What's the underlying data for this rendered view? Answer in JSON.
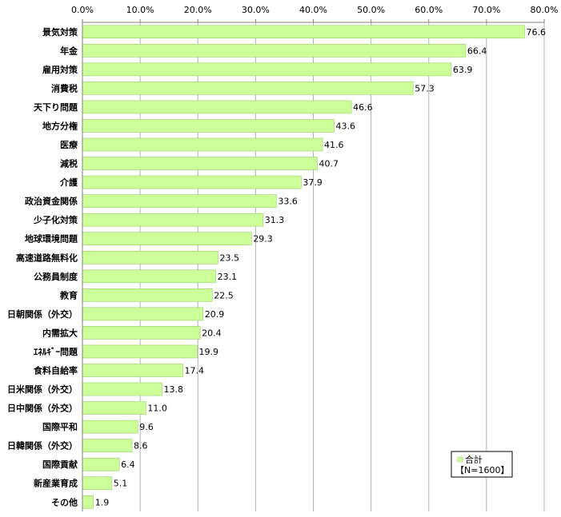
{
  "chart_data": {
    "type": "bar",
    "orientation": "horizontal",
    "categories": [
      "景気対策",
      "年金",
      "雇用対策",
      "消費税",
      "天下り問題",
      "地方分権",
      "医療",
      "減税",
      "介護",
      "政治資金関係",
      "少子化対策",
      "地球環境問題",
      "高速道路無料化",
      "公務員制度",
      "教育",
      "日朝関係（外交）",
      "内需拡大",
      "ｴﾈﾙｷﾞｰ問題",
      "食料自給率",
      "日米関係（外交）",
      "日中関係（外交）",
      "国際平和",
      "日韓関係（外交）",
      "国際貢献",
      "新産業育成",
      "その他"
    ],
    "series": [
      {
        "name": "合計",
        "values": [
          76.6,
          66.4,
          63.9,
          57.3,
          46.6,
          43.6,
          41.6,
          40.7,
          37.9,
          33.6,
          31.3,
          29.3,
          23.5,
          23.1,
          22.5,
          20.9,
          20.4,
          19.9,
          17.4,
          13.8,
          11.0,
          9.6,
          8.6,
          6.4,
          5.1,
          1.9
        ]
      }
    ],
    "value_labels": [
      "76.6",
      "66.4",
      "63.9",
      "57.3",
      "46.6",
      "43.6",
      "41.6",
      "40.7",
      "37.9",
      "33.6",
      "31.3",
      "29.3",
      "23.5",
      "23.1",
      "22.5",
      "20.9",
      "20.4",
      "19.9",
      "17.4",
      "13.8",
      "11.0",
      "9.6",
      "8.6",
      "6.4",
      "5.1",
      "1.9"
    ],
    "xlim": [
      0,
      80
    ],
    "ticks": [
      "0.0%",
      "10.0%",
      "20.0%",
      "30.0%",
      "40.0%",
      "50.0%",
      "60.0%",
      "70.0%",
      "80.0%"
    ],
    "grid": "vertical",
    "legend": {
      "position": "bottom-right",
      "entries": [
        "合計"
      ],
      "note": "【N=1600】"
    },
    "colors": {
      "bar": "#ccff99",
      "bar_edge": "#99cc66",
      "grid": "#b0b0b0",
      "axis": "#808080"
    }
  }
}
